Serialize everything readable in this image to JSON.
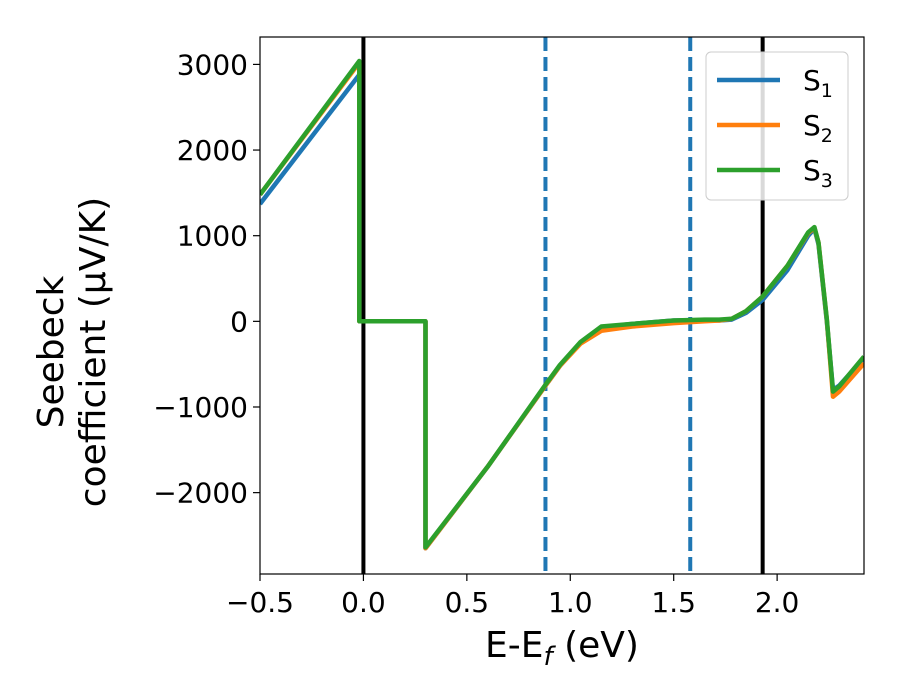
{
  "chart_data": {
    "type": "line",
    "xlabel": {
      "base": "E-E",
      "sub": "f",
      "rest": " (eV)"
    },
    "ylabel": {
      "line1": "Seebeck",
      "line2": "coefficient  (μV/K)"
    },
    "xlim": [
      -0.5,
      2.42
    ],
    "ylim": [
      -2950,
      3320
    ],
    "xticks": [
      -0.5,
      0.0,
      0.5,
      1.0,
      1.5,
      2.0
    ],
    "xtick_labels": [
      "−0.5",
      "0.0",
      "0.5",
      "1.0",
      "1.5",
      "2.0"
    ],
    "yticks": [
      3000,
      2000,
      1000,
      0,
      -1000,
      -2000
    ],
    "ytick_labels": [
      "3000",
      "2000",
      "1000",
      "0",
      "−1000",
      "−2000"
    ],
    "grid": false,
    "legend_position": "top-right",
    "vlines": [
      {
        "x": 0.0,
        "style": "solid",
        "color": "#000000"
      },
      {
        "x": 1.93,
        "style": "solid",
        "color": "#000000"
      },
      {
        "x": 0.88,
        "style": "dashed",
        "color": "#1f77b4"
      },
      {
        "x": 1.58,
        "style": "dashed",
        "color": "#1f77b4"
      }
    ],
    "series": [
      {
        "name": "S",
        "sub": "1",
        "color": "#1f77b4",
        "x": [
          -0.5,
          -0.02,
          -0.02,
          0.3,
          0.3,
          0.6,
          0.88,
          0.95,
          1.05,
          1.15,
          1.3,
          1.5,
          1.65,
          1.72,
          1.78,
          1.85,
          1.93,
          2.05,
          2.15,
          2.18,
          2.2,
          2.24,
          2.27,
          2.3,
          2.42
        ],
        "y": [
          1370,
          2880,
          0,
          0,
          -2650,
          -1700,
          -750,
          -520,
          -250,
          -70,
          -30,
          10,
          15,
          10,
          20,
          100,
          250,
          600,
          1000,
          1080,
          900,
          0,
          -800,
          -750,
          -430
        ]
      },
      {
        "name": "S",
        "sub": "2",
        "color": "#ff7f0e",
        "x": [
          -0.5,
          -0.02,
          -0.02,
          0.3,
          0.3,
          0.6,
          0.88,
          0.95,
          1.05,
          1.15,
          1.3,
          1.5,
          1.65,
          1.72,
          1.78,
          1.85,
          1.93,
          2.05,
          2.15,
          2.18,
          2.2,
          2.24,
          2.27,
          2.3,
          2.42
        ],
        "y": [
          1480,
          3020,
          0,
          0,
          -2650,
          -1700,
          -750,
          -520,
          -260,
          -110,
          -60,
          -20,
          0,
          10,
          30,
          120,
          290,
          650,
          1030,
          1090,
          920,
          20,
          -880,
          -820,
          -490
        ]
      },
      {
        "name": "S",
        "sub": "3",
        "color": "#2ca02c",
        "x": [
          -0.5,
          -0.02,
          -0.02,
          0.3,
          0.3,
          0.6,
          0.88,
          0.95,
          1.05,
          1.15,
          1.3,
          1.5,
          1.65,
          1.72,
          1.78,
          1.85,
          1.93,
          2.05,
          2.15,
          2.18,
          2.2,
          2.24,
          2.27,
          2.3,
          2.42
        ],
        "y": [
          1480,
          3040,
          0,
          0,
          -2640,
          -1700,
          -740,
          -510,
          -240,
          -60,
          -30,
          10,
          20,
          20,
          30,
          120,
          290,
          650,
          1040,
          1100,
          920,
          30,
          -820,
          -760,
          -410
        ]
      }
    ]
  }
}
